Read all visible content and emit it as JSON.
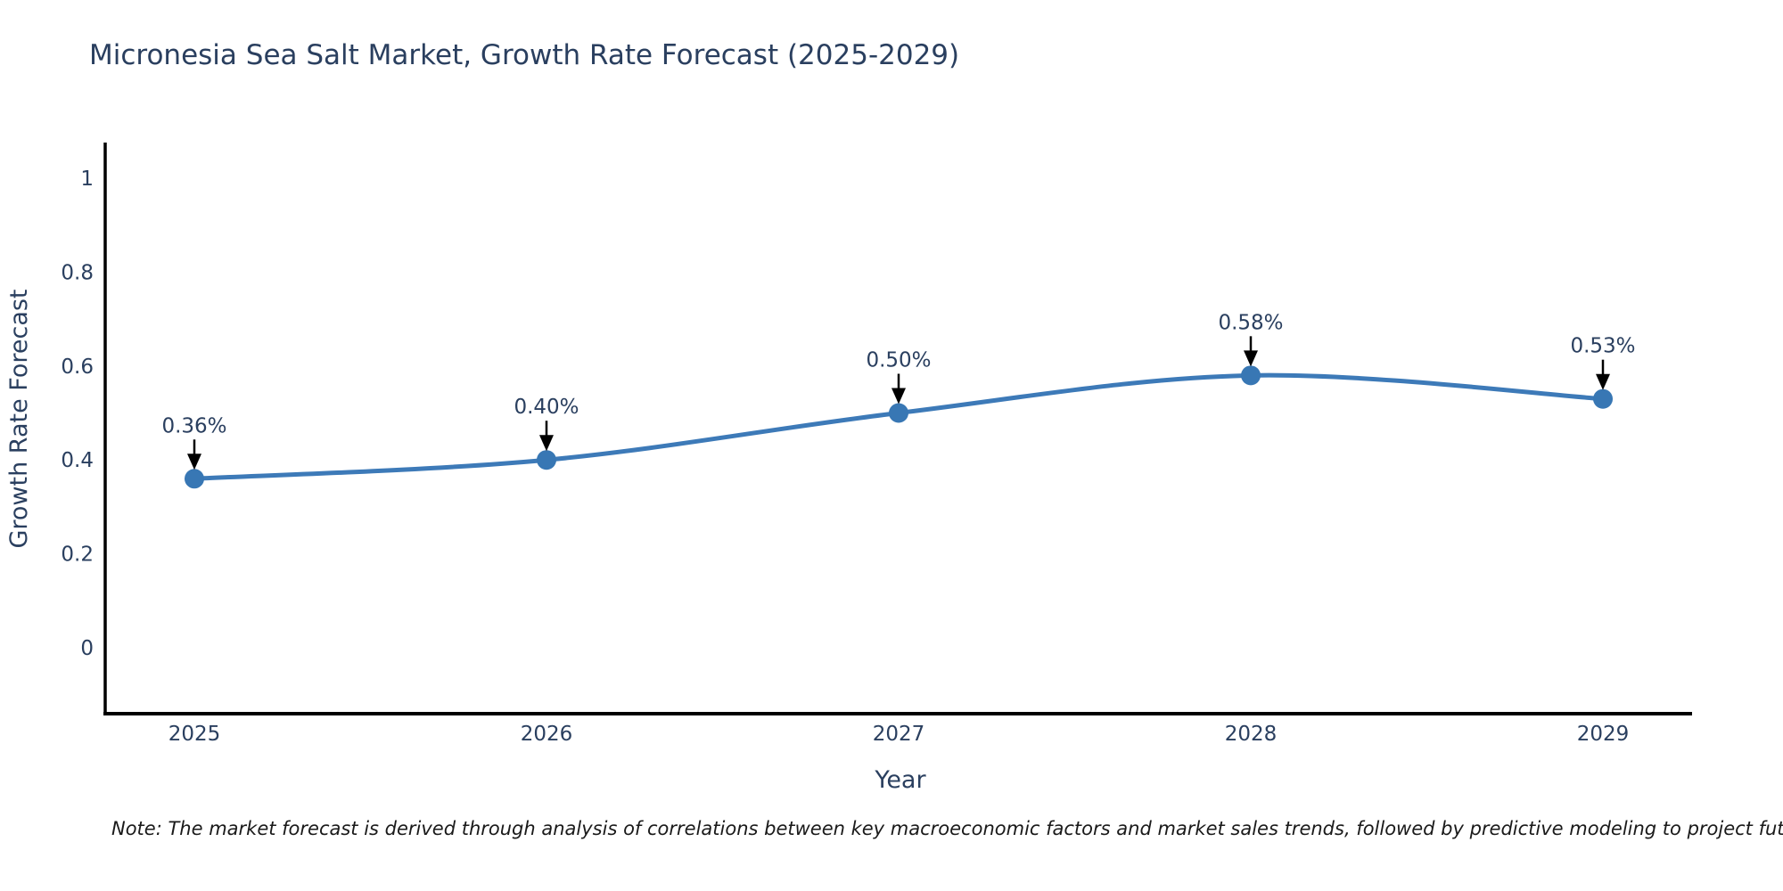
{
  "page": {
    "background": "#ffffff"
  },
  "chart_data": {
    "type": "line",
    "title": "Micronesia Sea Salt Market, Growth Rate Forecast (2025-2029)",
    "xlabel": "Year",
    "ylabel": "Growth Rate Forecast",
    "x": [
      "2025",
      "2026",
      "2027",
      "2028",
      "2029"
    ],
    "y": [
      0.36,
      0.4,
      0.5,
      0.58,
      0.53
    ],
    "point_labels": [
      "0.36%",
      "0.40%",
      "0.50%",
      "0.58%",
      "0.53%"
    ],
    "yticks": [
      0,
      0.2,
      0.4,
      0.6,
      0.8,
      1
    ],
    "ytick_labels": [
      "0",
      "0.2",
      "0.4",
      "0.6",
      "0.8",
      "1"
    ],
    "ylim": [
      -0.14,
      1.08
    ],
    "line_shape": "spline",
    "grid": false,
    "legend": false,
    "annotations_have_arrows": true,
    "colors": {
      "line": "#3d7ab8",
      "marker": "#3877b4",
      "axis": "#000000",
      "label_text": "#2a3f5f",
      "annotation_text": "#2a3f5f",
      "arrow": "#000000"
    }
  },
  "note": {
    "text": "Note: The market forecast is derived through analysis of correlations between key macroeconomic factors and market sales trends, followed by predictive modeling to project future sales"
  }
}
